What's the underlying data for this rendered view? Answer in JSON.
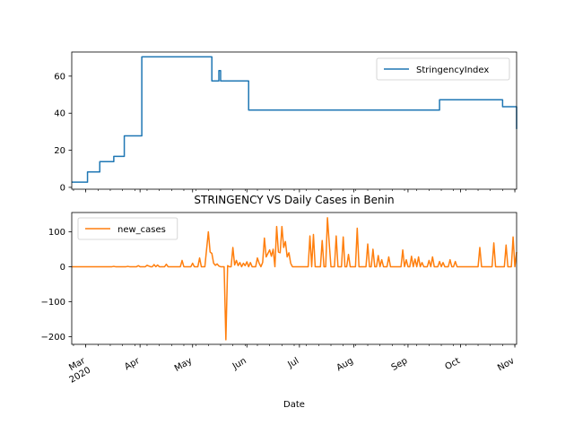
{
  "chart_data": [
    {
      "type": "line",
      "title": "",
      "xlabel": "",
      "ylabel": "",
      "xlim": [
        "2020-02-22",
        "2020-11-02"
      ],
      "ylim": [
        -1,
        73
      ],
      "yticks": [
        0,
        20,
        40,
        60
      ],
      "legend_position": "upper-right",
      "grid": false,
      "series": [
        {
          "name": "StringencyIndex",
          "color": "#1f77b4",
          "step": true,
          "points": [
            [
              "2020-02-22",
              2.8
            ],
            [
              "2020-03-01",
              2.8
            ],
            [
              "2020-03-02",
              8.3
            ],
            [
              "2020-03-08",
              8.3
            ],
            [
              "2020-03-09",
              13.9
            ],
            [
              "2020-03-16",
              13.9
            ],
            [
              "2020-03-17",
              16.7
            ],
            [
              "2020-03-22",
              16.7
            ],
            [
              "2020-03-23",
              27.8
            ],
            [
              "2020-04-01",
              27.8
            ],
            [
              "2020-04-02",
              70.4
            ],
            [
              "2020-05-11",
              70.4
            ],
            [
              "2020-05-12",
              57.4
            ],
            [
              "2020-05-15",
              57.4
            ],
            [
              "2020-05-16",
              62.96
            ],
            [
              "2020-05-17",
              57.4
            ],
            [
              "2020-06-01",
              57.4
            ],
            [
              "2020-06-02",
              41.67
            ],
            [
              "2020-09-18",
              41.67
            ],
            [
              "2020-09-19",
              47.22
            ],
            [
              "2020-10-24",
              47.22
            ],
            [
              "2020-10-25",
              43.52
            ],
            [
              "2020-11-01",
              43.52
            ],
            [
              "2020-11-02",
              31.48
            ]
          ]
        }
      ]
    },
    {
      "type": "line",
      "title": "STRINGENCY VS Daily Cases in Benin",
      "xlabel": "Date",
      "ylabel": "",
      "xlim": [
        "2020-02-22",
        "2020-11-02"
      ],
      "ylim": [
        -222,
        155
      ],
      "yticks": [
        -200,
        -100,
        0,
        100
      ],
      "x_tick_labels": [
        {
          "date": "2020-03-01",
          "label": "Mar\n2020"
        },
        {
          "date": "2020-04-01",
          "label": "Apr"
        },
        {
          "date": "2020-05-01",
          "label": "May"
        },
        {
          "date": "2020-06-01",
          "label": "Jun"
        },
        {
          "date": "2020-07-01",
          "label": "Jul"
        },
        {
          "date": "2020-08-01",
          "label": "Aug"
        },
        {
          "date": "2020-09-01",
          "label": "Sep"
        },
        {
          "date": "2020-10-01",
          "label": "Oct"
        },
        {
          "date": "2020-11-01",
          "label": "Nov"
        }
      ],
      "legend_position": "upper-left",
      "grid": false,
      "series": [
        {
          "name": "new_cases",
          "color": "#ff7f0e",
          "points": [
            [
              "2020-02-22",
              0
            ],
            [
              "2020-03-16",
              0
            ],
            [
              "2020-03-17",
              1
            ],
            [
              "2020-03-18",
              0
            ],
            [
              "2020-03-24",
              0
            ],
            [
              "2020-03-25",
              1
            ],
            [
              "2020-03-26",
              0
            ],
            [
              "2020-03-30",
              0
            ],
            [
              "2020-03-31",
              3
            ],
            [
              "2020-04-01",
              0
            ],
            [
              "2020-04-04",
              0
            ],
            [
              "2020-04-05",
              4
            ],
            [
              "2020-04-06",
              2
            ],
            [
              "2020-04-07",
              0
            ],
            [
              "2020-04-08",
              0
            ],
            [
              "2020-04-09",
              6
            ],
            [
              "2020-04-10",
              0
            ],
            [
              "2020-04-11",
              5
            ],
            [
              "2020-04-12",
              0
            ],
            [
              "2020-04-15",
              0
            ],
            [
              "2020-04-16",
              7
            ],
            [
              "2020-04-17",
              0
            ],
            [
              "2020-04-24",
              0
            ],
            [
              "2020-04-25",
              18
            ],
            [
              "2020-04-26",
              0
            ],
            [
              "2020-04-30",
              0
            ],
            [
              "2020-05-01",
              10
            ],
            [
              "2020-05-02",
              0
            ],
            [
              "2020-05-04",
              0
            ],
            [
              "2020-05-05",
              25
            ],
            [
              "2020-05-06",
              0
            ],
            [
              "2020-05-08",
              0
            ],
            [
              "2020-05-10",
              100
            ],
            [
              "2020-05-11",
              42
            ],
            [
              "2020-05-12",
              38
            ],
            [
              "2020-05-13",
              10
            ],
            [
              "2020-05-14",
              4
            ],
            [
              "2020-05-15",
              8
            ],
            [
              "2020-05-16",
              2
            ],
            [
              "2020-05-17",
              0
            ],
            [
              "2020-05-19",
              0
            ],
            [
              "2020-05-20",
              -209
            ],
            [
              "2020-05-21",
              3
            ],
            [
              "2020-05-22",
              0
            ],
            [
              "2020-05-23",
              0
            ],
            [
              "2020-05-24",
              55
            ],
            [
              "2020-05-25",
              5
            ],
            [
              "2020-05-26",
              18
            ],
            [
              "2020-05-27",
              3
            ],
            [
              "2020-05-28",
              12
            ],
            [
              "2020-05-29",
              0
            ],
            [
              "2020-05-30",
              10
            ],
            [
              "2020-05-31",
              3
            ],
            [
              "2020-06-01",
              14
            ],
            [
              "2020-06-02",
              0
            ],
            [
              "2020-06-03",
              12
            ],
            [
              "2020-06-04",
              0
            ],
            [
              "2020-06-06",
              0
            ],
            [
              "2020-06-07",
              25
            ],
            [
              "2020-06-08",
              10
            ],
            [
              "2020-06-09",
              0
            ],
            [
              "2020-06-10",
              12
            ],
            [
              "2020-06-11",
              82
            ],
            [
              "2020-06-12",
              28
            ],
            [
              "2020-06-13",
              38
            ],
            [
              "2020-06-14",
              48
            ],
            [
              "2020-06-15",
              30
            ],
            [
              "2020-06-16",
              50
            ],
            [
              "2020-06-17",
              0
            ],
            [
              "2020-06-18",
              115
            ],
            [
              "2020-06-19",
              42
            ],
            [
              "2020-06-20",
              40
            ],
            [
              "2020-06-21",
              115
            ],
            [
              "2020-06-22",
              55
            ],
            [
              "2020-06-23",
              72
            ],
            [
              "2020-06-24",
              28
            ],
            [
              "2020-06-25",
              40
            ],
            [
              "2020-06-26",
              10
            ],
            [
              "2020-06-27",
              0
            ],
            [
              "2020-07-06",
              0
            ],
            [
              "2020-07-07",
              88
            ],
            [
              "2020-07-08",
              0
            ],
            [
              "2020-07-09",
              92
            ],
            [
              "2020-07-10",
              0
            ],
            [
              "2020-07-13",
              0
            ],
            [
              "2020-07-14",
              75
            ],
            [
              "2020-07-15",
              0
            ],
            [
              "2020-07-16",
              0
            ],
            [
              "2020-07-17",
              140
            ],
            [
              "2020-07-18",
              68
            ],
            [
              "2020-07-19",
              0
            ],
            [
              "2020-07-21",
              0
            ],
            [
              "2020-07-22",
              88
            ],
            [
              "2020-07-23",
              0
            ],
            [
              "2020-07-25",
              0
            ],
            [
              "2020-07-26",
              85
            ],
            [
              "2020-07-27",
              0
            ],
            [
              "2020-07-28",
              0
            ],
            [
              "2020-07-29",
              35
            ],
            [
              "2020-07-30",
              0
            ],
            [
              "2020-08-02",
              0
            ],
            [
              "2020-08-03",
              110
            ],
            [
              "2020-08-04",
              0
            ],
            [
              "2020-08-08",
              0
            ],
            [
              "2020-08-09",
              65
            ],
            [
              "2020-08-10",
              0
            ],
            [
              "2020-08-11",
              0
            ],
            [
              "2020-08-12",
              50
            ],
            [
              "2020-08-13",
              0
            ],
            [
              "2020-08-14",
              0
            ],
            [
              "2020-08-15",
              32
            ],
            [
              "2020-08-16",
              0
            ],
            [
              "2020-08-17",
              20
            ],
            [
              "2020-08-18",
              0
            ],
            [
              "2020-08-20",
              0
            ],
            [
              "2020-08-21",
              28
            ],
            [
              "2020-08-22",
              0
            ],
            [
              "2020-08-28",
              0
            ],
            [
              "2020-08-29",
              48
            ],
            [
              "2020-08-30",
              0
            ],
            [
              "2020-08-31",
              20
            ],
            [
              "2020-09-01",
              0
            ],
            [
              "2020-09-02",
              0
            ],
            [
              "2020-09-03",
              30
            ],
            [
              "2020-09-04",
              0
            ],
            [
              "2020-09-05",
              22
            ],
            [
              "2020-09-06",
              0
            ],
            [
              "2020-09-07",
              28
            ],
            [
              "2020-09-08",
              0
            ],
            [
              "2020-09-09",
              12
            ],
            [
              "2020-09-10",
              0
            ],
            [
              "2020-09-12",
              0
            ],
            [
              "2020-09-13",
              18
            ],
            [
              "2020-09-14",
              0
            ],
            [
              "2020-09-15",
              28
            ],
            [
              "2020-09-16",
              0
            ],
            [
              "2020-09-18",
              0
            ],
            [
              "2020-09-19",
              15
            ],
            [
              "2020-09-20",
              0
            ],
            [
              "2020-09-21",
              12
            ],
            [
              "2020-09-22",
              0
            ],
            [
              "2020-09-24",
              0
            ],
            [
              "2020-09-25",
              20
            ],
            [
              "2020-09-26",
              0
            ],
            [
              "2020-09-27",
              0
            ],
            [
              "2020-09-28",
              15
            ],
            [
              "2020-09-29",
              0
            ],
            [
              "2020-10-11",
              0
            ],
            [
              "2020-10-12",
              55
            ],
            [
              "2020-10-13",
              0
            ],
            [
              "2020-10-19",
              0
            ],
            [
              "2020-10-20",
              68
            ],
            [
              "2020-10-21",
              0
            ],
            [
              "2020-10-26",
              0
            ],
            [
              "2020-10-27",
              62
            ],
            [
              "2020-10-28",
              0
            ],
            [
              "2020-10-30",
              0
            ],
            [
              "2020-10-31",
              85
            ],
            [
              "2020-11-01",
              0
            ],
            [
              "2020-11-02",
              42
            ]
          ]
        }
      ]
    }
  ]
}
